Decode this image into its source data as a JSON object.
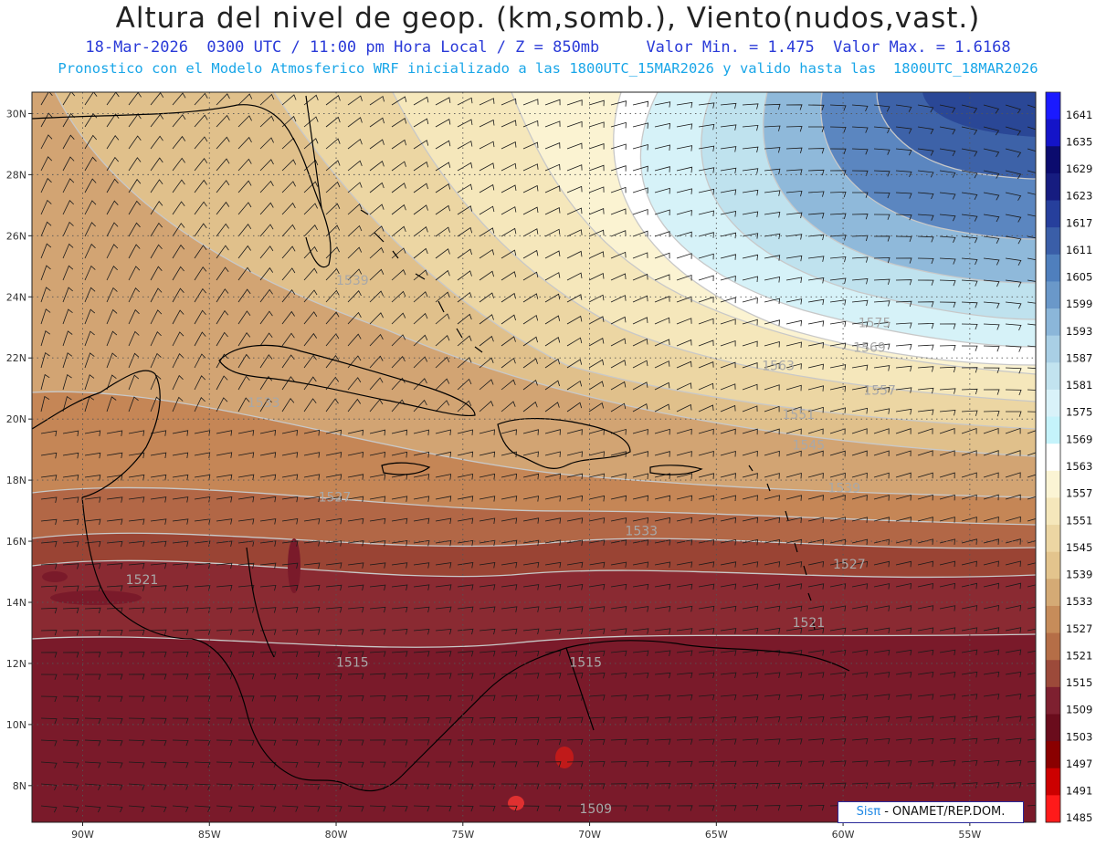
{
  "header": {
    "title": "Altura del nivel de geop. (km,somb.), Viento(nudos,vast.)",
    "info_line": "18-Mar-2026  0300 UTC / 11:00 pm Hora Local / Z = 850mb     Valor Min. = 1.475  Valor Max. = 1.6168",
    "model_line": "Pronostico con el Modelo Atmosferico WRF inicializado a las 1800UTC_15MAR2026 y valido hasta las  1800UTC_18MAR2026"
  },
  "map": {
    "lat_labels": [
      "30N",
      "28N",
      "26N",
      "24N",
      "22N",
      "20N",
      "18N",
      "16N",
      "14N",
      "12N",
      "10N",
      "8N"
    ],
    "lon_labels": [
      "90W",
      "85W",
      "80W",
      "75W",
      "70W",
      "65W",
      "60W",
      "55W"
    ],
    "contour_labels": [
      {
        "text": "1539",
        "lon": -80.0,
        "lat": 24.4
      },
      {
        "text": "1575",
        "lon": -59.4,
        "lat": 23.0
      },
      {
        "text": "1569",
        "lon": -59.6,
        "lat": 22.2
      },
      {
        "text": "1563",
        "lon": -63.2,
        "lat": 21.6
      },
      {
        "text": "1557",
        "lon": -59.2,
        "lat": 20.8
      },
      {
        "text": "1551",
        "lon": -62.4,
        "lat": 20.0
      },
      {
        "text": "1545",
        "lon": -62.0,
        "lat": 19.0
      },
      {
        "text": "1539",
        "lon": -60.6,
        "lat": 17.6
      },
      {
        "text": "1533",
        "lon": -68.6,
        "lat": 16.2
      },
      {
        "text": "1527",
        "lon": -60.4,
        "lat": 15.1
      },
      {
        "text": "1521",
        "lon": -62.0,
        "lat": 13.2
      },
      {
        "text": "1521",
        "lon": -88.3,
        "lat": 14.6
      },
      {
        "text": "1533",
        "lon": -83.5,
        "lat": 20.4
      },
      {
        "text": "1527",
        "lon": -80.7,
        "lat": 17.3
      },
      {
        "text": "1515",
        "lon": -80.0,
        "lat": 11.9
      },
      {
        "text": "1515",
        "lon": -70.8,
        "lat": 11.9
      },
      {
        "text": "1509",
        "lon": -70.4,
        "lat": 7.1
      }
    ]
  },
  "colorbar": {
    "levels": [
      "1641",
      "1635",
      "1629",
      "1623",
      "1617",
      "1611",
      "1605",
      "1599",
      "1593",
      "1587",
      "1581",
      "1575",
      "1569",
      "1563",
      "1557",
      "1551",
      "1545",
      "1539",
      "1533",
      "1527",
      "1521",
      "1515",
      "1509",
      "1503",
      "1497",
      "1491",
      "1485"
    ],
    "colors": [
      "#1a1aff",
      "#1414c8",
      "#0b0b6e",
      "#161c80",
      "#263f9c",
      "#3a5ea8",
      "#4f7fbd",
      "#6a98c9",
      "#8bb6d9",
      "#a9cfe5",
      "#c2e3ef",
      "#d9f2f9",
      "#c5f3fb",
      "#ffffff",
      "#fbf4d4",
      "#f5e7bb",
      "#ecd6a3",
      "#e3c48d",
      "#d4aa75",
      "#c68c5a",
      "#b56e47",
      "#9c4a3a",
      "#7e2030",
      "#6a0c1c",
      "#8a0000",
      "#cc0000",
      "#ff1a1a"
    ]
  },
  "credit": {
    "brand": "Sisπ",
    "rest": " - ONAMET/REP.DOM."
  }
}
